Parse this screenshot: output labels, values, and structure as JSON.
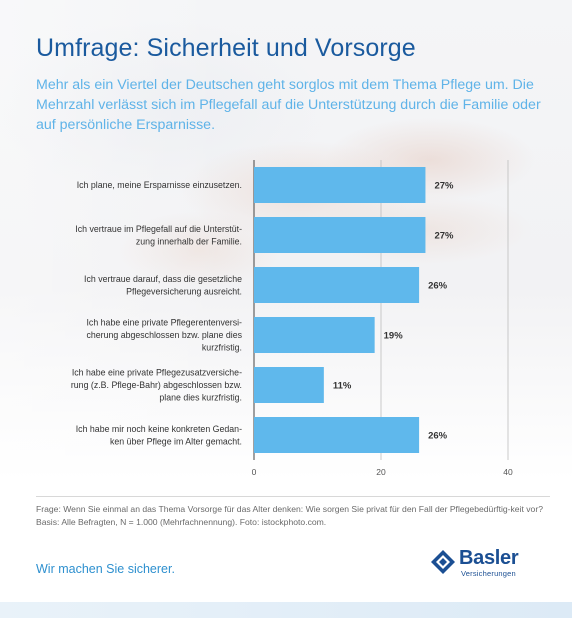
{
  "header": {
    "title": "Umfrage: Sicherheit und Vorsorge",
    "subtitle": "Mehr als ein Viertel der Deutschen geht sorglos mit dem Thema Pflege um. Die Mehrzahl verlässt sich im Pflegefall auf die Unterstützung durch die Familie oder auf persönliche Ersparnisse."
  },
  "chart_data": {
    "type": "bar",
    "orientation": "horizontal",
    "categories": [
      [
        "Ich plane, meine Ersparnisse einzusetzen."
      ],
      [
        "Ich vertraue im Pflegefall auf die Unterstüt-",
        "zung innerhalb der Familie."
      ],
      [
        "Ich vertraue darauf, dass die gesetzliche",
        "Pflegeversicherung ausreicht."
      ],
      [
        "Ich habe eine private Pflegerentenversi-",
        "cherung abgeschlossen bzw. plane dies",
        "kurzfristig."
      ],
      [
        "Ich habe eine private Pflegezusatzversiche-",
        "rung (z.B. Pflege-Bahr)  abgeschlossen bzw.",
        "plane dies kurzfristig."
      ],
      [
        "Ich habe mir noch keine konkreten Gedan-",
        "ken über Pflege im Alter gemacht."
      ]
    ],
    "values": [
      27,
      27,
      26,
      19,
      11,
      26
    ],
    "value_labels": [
      "27%",
      "27%",
      "26%",
      "19%",
      "11%",
      "26%"
    ],
    "xlim": [
      0,
      40
    ],
    "xticks": [
      0,
      20,
      40
    ],
    "xtick_labels": [
      "0",
      "20",
      "40"
    ],
    "gridlines": true,
    "bar_color": "#5fb8ec",
    "axis_color": "#444444"
  },
  "footer": {
    "note": "Frage: Wenn Sie einmal an das Thema Vorsorge für das Alter denken: Wie sorgen Sie privat für den Fall der Pflegebedürftig-keit vor? Basis: Alle Befragten, N = 1.000  (Mehrfachnennung). Foto: istockphoto.com.",
    "slogan": "Wir machen Sie sicherer."
  },
  "logo": {
    "name": "Basler",
    "sub": "Versicherungen",
    "color": "#1b4f93"
  }
}
